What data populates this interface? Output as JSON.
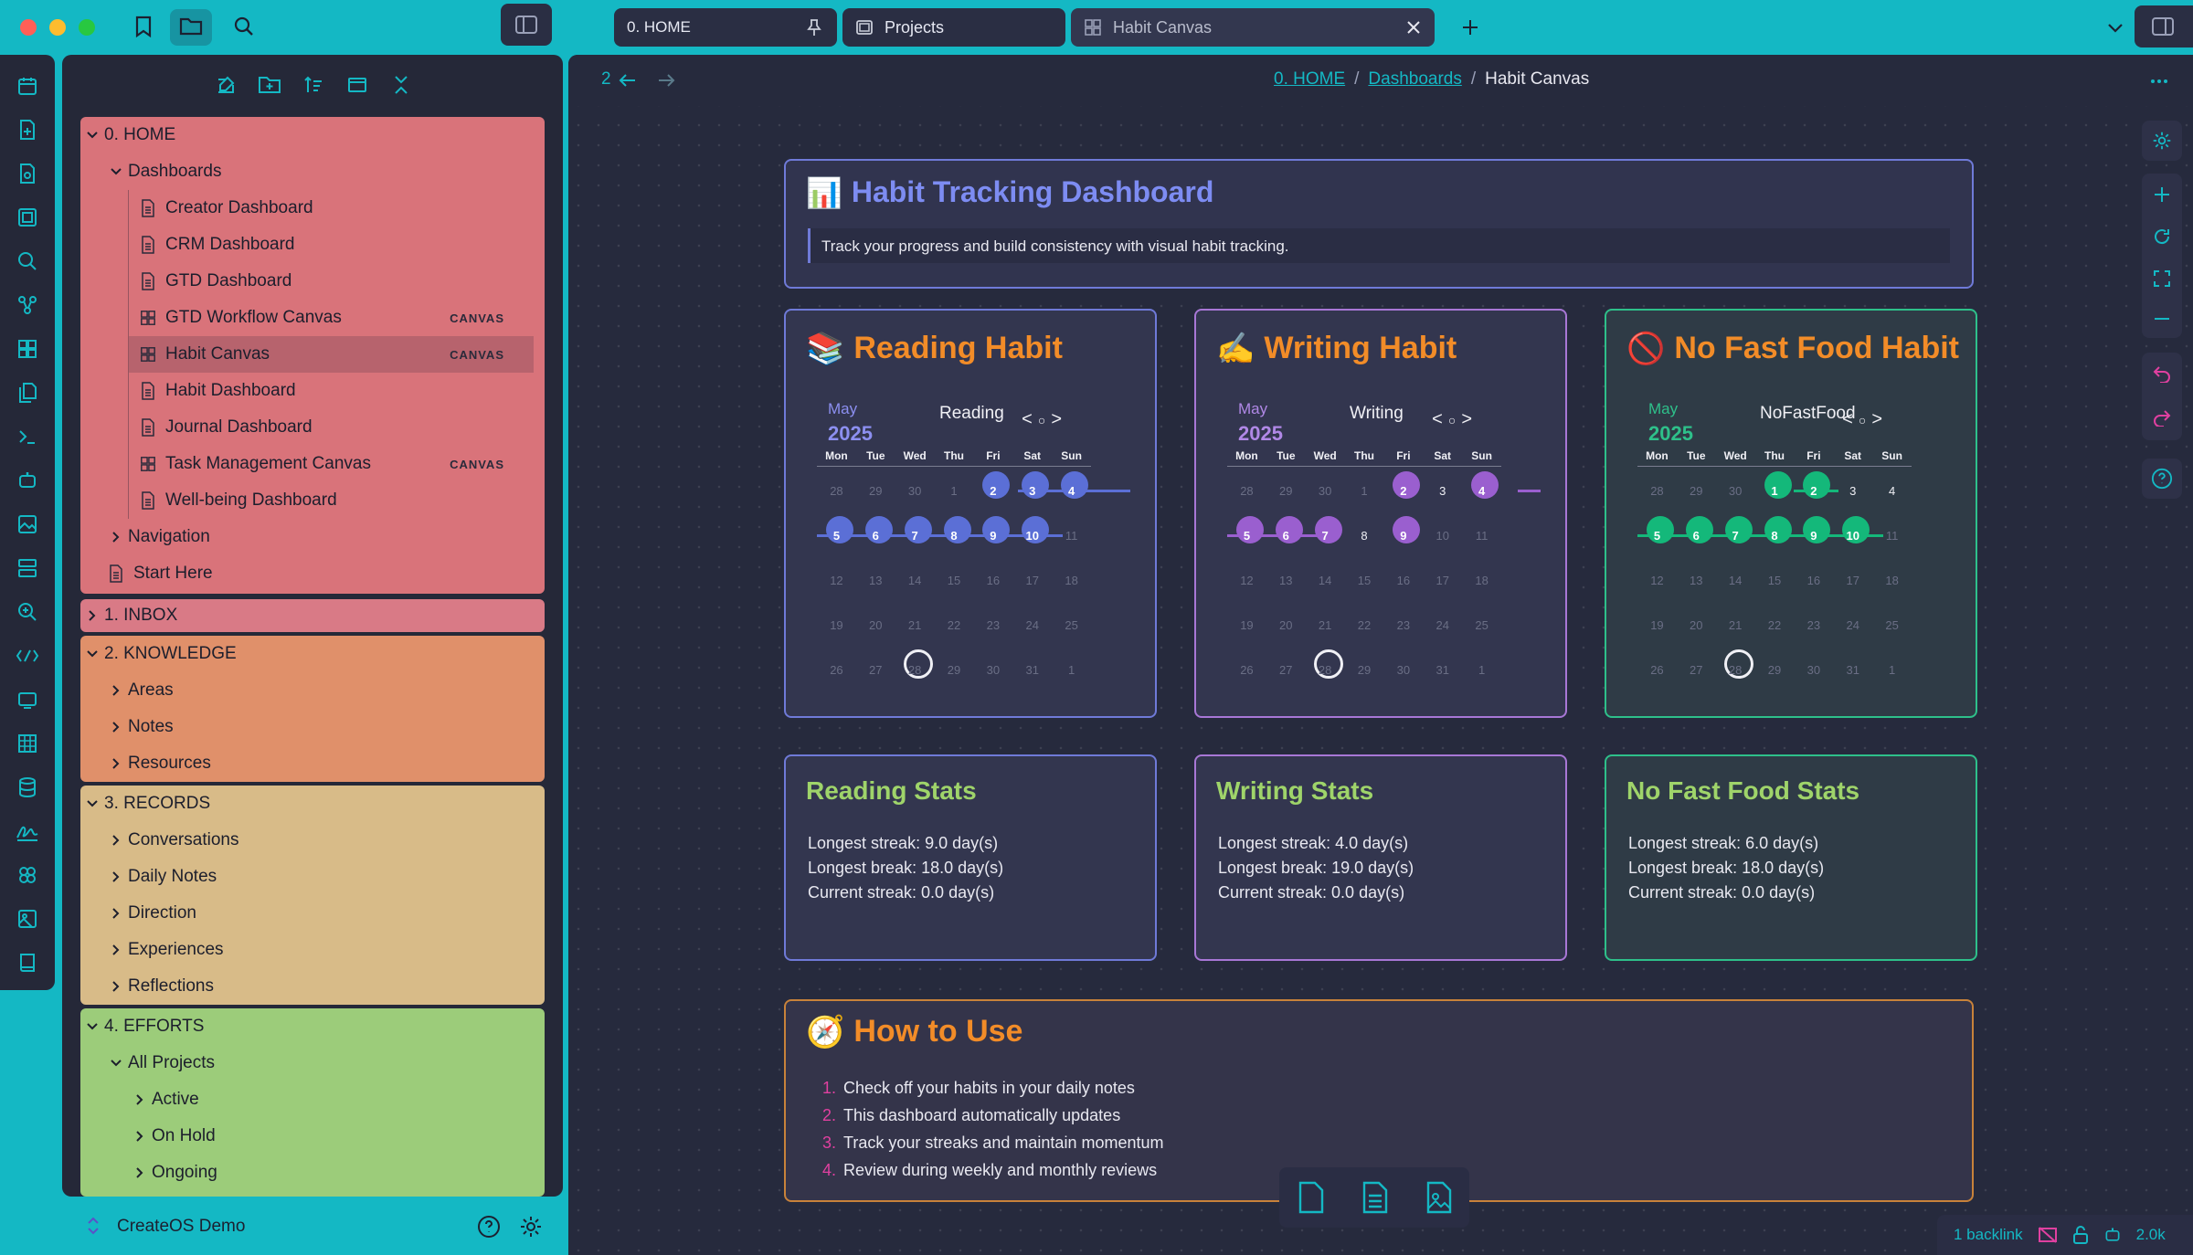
{
  "tabs": [
    {
      "label": "0. HOME",
      "pinned": true
    },
    {
      "label": "Projects"
    },
    {
      "label": "Habit Canvas",
      "active": true
    }
  ],
  "nav": {
    "history_count": "2"
  },
  "breadcrumb": {
    "home": "0. HOME",
    "dashboards": "Dashboards",
    "current": "Habit Canvas"
  },
  "sidebar": {
    "vault_name": "CreateOS Demo",
    "home": {
      "label": "0. HOME",
      "color": "#d9737a"
    },
    "dashboards": {
      "label": "Dashboards"
    },
    "dashboard_items": [
      {
        "label": "Creator Dashboard",
        "type": "note"
      },
      {
        "label": "CRM Dashboard",
        "type": "note"
      },
      {
        "label": "GTD Dashboard",
        "type": "note"
      },
      {
        "label": "GTD Workflow Canvas",
        "type": "canvas",
        "badge": "CANVAS"
      },
      {
        "label": "Habit Canvas",
        "type": "canvas",
        "badge": "CANVAS",
        "selected": true
      },
      {
        "label": "Habit Dashboard",
        "type": "note"
      },
      {
        "label": "Journal Dashboard",
        "type": "note"
      },
      {
        "label": "Task Management Canvas",
        "type": "canvas",
        "badge": "CANVAS"
      },
      {
        "label": "Well-being Dashboard",
        "type": "note"
      }
    ],
    "navigation": {
      "label": "Navigation"
    },
    "start_here": {
      "label": "Start Here"
    },
    "inbox": {
      "label": "1. INBOX",
      "color": "#d97a86"
    },
    "knowledge": {
      "label": "2. KNOWLEDGE",
      "color": "#e0906a",
      "items": [
        "Areas",
        "Notes",
        "Resources"
      ]
    },
    "records": {
      "label": "3. RECORDS",
      "color": "#d8bb88",
      "items": [
        "Conversations",
        "Daily Notes",
        "Direction",
        "Experiences",
        "Reflections"
      ]
    },
    "efforts": {
      "label": "4. EFFORTS",
      "color": "#9ccc7a",
      "all_projects": "All Projects",
      "items": [
        "Active",
        "On Hold",
        "Ongoing"
      ]
    }
  },
  "canvas": {
    "header": {
      "icon": "📊",
      "title": "Habit Tracking Dashboard",
      "subtitle": "Track your progress and build consistency with visual habit tracking."
    },
    "habits": [
      {
        "icon": "📚",
        "title": "Reading Habit",
        "month": "May",
        "year": "2025",
        "name": "Reading",
        "color": "#5b6fd6",
        "border": "#6f7ad8",
        "text_color": "#8c8ff0",
        "weeks": [
          [
            "28",
            "29",
            "30",
            "1",
            "2",
            "3",
            "4"
          ],
          [
            "5",
            "6",
            "7",
            "8",
            "9",
            "10",
            "11"
          ],
          [
            "12",
            "13",
            "14",
            "15",
            "16",
            "17",
            "18"
          ],
          [
            "19",
            "20",
            "21",
            "22",
            "23",
            "24",
            "25"
          ],
          [
            "26",
            "27",
            "28",
            "29",
            "30",
            "31",
            "1"
          ]
        ],
        "done": [
          "2",
          "3",
          "4",
          "5",
          "6",
          "7",
          "8",
          "9",
          "10"
        ],
        "current": []
      },
      {
        "icon": "✍️",
        "title": "Writing Habit",
        "month": "May",
        "year": "2025",
        "name": "Writing",
        "color": "#9a5fcf",
        "border": "#a877d6",
        "text_color": "#b088e6",
        "weeks": [
          [
            "28",
            "29",
            "30",
            "1",
            "2",
            "3",
            "4"
          ],
          [
            "5",
            "6",
            "7",
            "8",
            "9",
            "10",
            "11"
          ],
          [
            "12",
            "13",
            "14",
            "15",
            "16",
            "17",
            "18"
          ],
          [
            "19",
            "20",
            "21",
            "22",
            "23",
            "24",
            "25"
          ],
          [
            "26",
            "27",
            "28",
            "29",
            "30",
            "31",
            "1"
          ]
        ],
        "done": [
          "2",
          "4",
          "5",
          "6",
          "7",
          "9"
        ],
        "current": [
          "3",
          "8"
        ]
      },
      {
        "icon": "🚫",
        "title": "No Fast Food Habit",
        "month": "May",
        "year": "2025",
        "name": "NoFastFood",
        "color": "#14b87a",
        "border": "#2ec08a",
        "text_color": "#2ec08a",
        "weeks": [
          [
            "28",
            "29",
            "30",
            "1",
            "2",
            "3",
            "4"
          ],
          [
            "5",
            "6",
            "7",
            "8",
            "9",
            "10",
            "11"
          ],
          [
            "12",
            "13",
            "14",
            "15",
            "16",
            "17",
            "18"
          ],
          [
            "19",
            "20",
            "21",
            "22",
            "23",
            "24",
            "25"
          ],
          [
            "26",
            "27",
            "28",
            "29",
            "30",
            "31",
            "1"
          ]
        ],
        "done": [
          "1",
          "2",
          "5",
          "6",
          "7",
          "8",
          "9",
          "10"
        ],
        "current": [
          "3",
          "4"
        ]
      }
    ],
    "days": [
      "Mon",
      "Tue",
      "Wed",
      "Thu",
      "Fri",
      "Sat",
      "Sun"
    ],
    "today": "28",
    "stats": [
      {
        "title": "Reading Stats",
        "longest_streak": "Longest streak: 9.0 day(s)",
        "longest_break": "Longest break: 18.0 day(s)",
        "current_streak": "Current streak: 0.0 day(s)"
      },
      {
        "title": "Writing Stats",
        "longest_streak": "Longest streak: 4.0 day(s)",
        "longest_break": "Longest break: 19.0 day(s)",
        "current_streak": "Current streak: 0.0 day(s)"
      },
      {
        "title": "No Fast Food Stats",
        "longest_streak": "Longest streak: 6.0 day(s)",
        "longest_break": "Longest break: 18.0 day(s)",
        "current_streak": "Current streak: 0.0 day(s)"
      }
    ],
    "howto": {
      "icon": "🧭",
      "title": "How to Use",
      "steps": [
        "Check off your habits in your daily notes",
        "This dashboard automatically updates",
        "Track your streaks and maintain momentum",
        "Review during weekly and monthly reviews"
      ]
    }
  },
  "status": {
    "backlinks": "1 backlink",
    "words": "2.0k"
  },
  "colors": {
    "accent": "#14b8c4",
    "panel": "#252838",
    "canvas_bg": "#262a3d"
  }
}
